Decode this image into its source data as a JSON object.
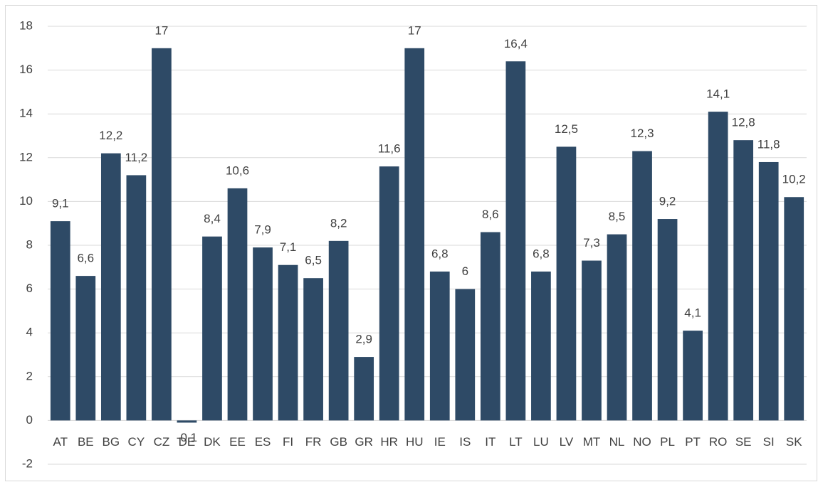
{
  "chart_data": {
    "type": "bar",
    "categories": [
      "AT",
      "BE",
      "BG",
      "CY",
      "CZ",
      "DE",
      "DK",
      "EE",
      "ES",
      "FI",
      "FR",
      "GB",
      "GR",
      "HR",
      "HU",
      "IE",
      "IS",
      "IT",
      "LT",
      "LU",
      "LV",
      "MT",
      "NL",
      "NO",
      "PL",
      "PT",
      "RO",
      "SE",
      "SI",
      "SK"
    ],
    "values": [
      9.1,
      6.6,
      12.2,
      11.2,
      17,
      -0.1,
      8.4,
      10.6,
      7.9,
      7.1,
      6.5,
      8.2,
      2.9,
      11.6,
      17,
      6.8,
      6,
      8.6,
      16.4,
      6.8,
      12.5,
      7.3,
      8.5,
      12.3,
      9.2,
      4.1,
      14.1,
      12.8,
      11.8,
      10.2
    ],
    "value_labels": [
      "9,1",
      "6,6",
      "12,2",
      "11,2",
      "17",
      "-0,1",
      "8,4",
      "10,6",
      "7,9",
      "7,1",
      "6,5",
      "8,2",
      "2,9",
      "11,6",
      "17",
      "6,8",
      "6",
      "8,6",
      "16,4",
      "6,8",
      "12,5",
      "7,3",
      "8,5",
      "12,3",
      "9,2",
      "4,1",
      "14,1",
      "12,8",
      "11,8",
      "10,2"
    ],
    "color": "#2e4a66",
    "ylim": [
      -2,
      18
    ],
    "yticks": [
      -2,
      0,
      2,
      4,
      6,
      8,
      10,
      12,
      14,
      16,
      18
    ],
    "grid": true
  }
}
